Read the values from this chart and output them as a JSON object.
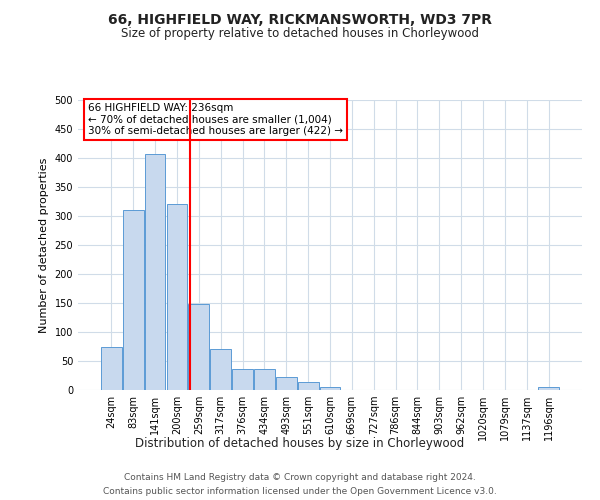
{
  "title": "66, HIGHFIELD WAY, RICKMANSWORTH, WD3 7PR",
  "subtitle": "Size of property relative to detached houses in Chorleywood",
  "xlabel": "Distribution of detached houses by size in Chorleywood",
  "ylabel": "Number of detached properties",
  "bin_labels": [
    "24sqm",
    "83sqm",
    "141sqm",
    "200sqm",
    "259sqm",
    "317sqm",
    "376sqm",
    "434sqm",
    "493sqm",
    "551sqm",
    "610sqm",
    "669sqm",
    "727sqm",
    "786sqm",
    "844sqm",
    "903sqm",
    "962sqm",
    "1020sqm",
    "1079sqm",
    "1137sqm",
    "1196sqm"
  ],
  "bar_heights": [
    75,
    311,
    407,
    320,
    148,
    70,
    37,
    37,
    22,
    13,
    5,
    0,
    0,
    0,
    0,
    0,
    0,
    0,
    0,
    0,
    5
  ],
  "bar_color": "#c8d9ee",
  "bar_edge_color": "#5b9bd5",
  "ylim": [
    0,
    500
  ],
  "yticks": [
    0,
    50,
    100,
    150,
    200,
    250,
    300,
    350,
    400,
    450,
    500
  ],
  "ann_line1": "66 HIGHFIELD WAY: 236sqm",
  "ann_line2": "← 70% of detached houses are smaller (1,004)",
  "ann_line3": "30% of semi-detached houses are larger (422) →",
  "footer_line1": "Contains HM Land Registry data © Crown copyright and database right 2024.",
  "footer_line2": "Contains public sector information licensed under the Open Government Licence v3.0.",
  "background_color": "#ffffff",
  "grid_color": "#d0dce8",
  "red_line_value": 236
}
